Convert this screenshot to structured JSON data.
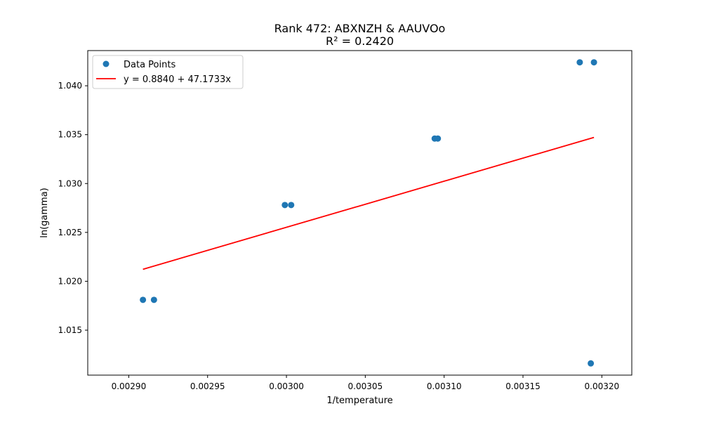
{
  "chart_data": {
    "type": "scatter",
    "title": "Rank 472: ABXNZH & AAUVOo",
    "subtitle": "R² = 0.2420",
    "xlabel": "1/temperature",
    "ylabel": "ln(gamma)",
    "xlim": [
      0.002874,
      0.003219
    ],
    "ylim": [
      1.0104,
      1.0436
    ],
    "xticks": [
      {
        "value": 0.0029,
        "label": "0.00290"
      },
      {
        "value": 0.00295,
        "label": "0.00295"
      },
      {
        "value": 0.003,
        "label": "0.00300"
      },
      {
        "value": 0.00305,
        "label": "0.00305"
      },
      {
        "value": 0.0031,
        "label": "0.00310"
      },
      {
        "value": 0.00315,
        "label": "0.00315"
      },
      {
        "value": 0.0032,
        "label": "0.00320"
      }
    ],
    "yticks": [
      {
        "value": 1.015,
        "label": "1.015"
      },
      {
        "value": 1.02,
        "label": "1.020"
      },
      {
        "value": 1.025,
        "label": "1.025"
      },
      {
        "value": 1.03,
        "label": "1.030"
      },
      {
        "value": 1.035,
        "label": "1.035"
      },
      {
        "value": 1.04,
        "label": "1.040"
      }
    ],
    "grid": false,
    "legend_position": "top-left",
    "series": [
      {
        "name": "Data Points",
        "kind": "scatter",
        "color": "#1f77b4",
        "points": [
          {
            "x": 0.002909,
            "y": 1.0181
          },
          {
            "x": 0.002916,
            "y": 1.0181
          },
          {
            "x": 0.002999,
            "y": 1.0278
          },
          {
            "x": 0.003003,
            "y": 1.0278
          },
          {
            "x": 0.003094,
            "y": 1.0346
          },
          {
            "x": 0.003096,
            "y": 1.0346
          },
          {
            "x": 0.003186,
            "y": 1.0424
          },
          {
            "x": 0.003195,
            "y": 1.0424
          },
          {
            "x": 0.003193,
            "y": 1.0116
          }
        ]
      },
      {
        "name": "y = 0.8840 + 47.1733x",
        "kind": "line",
        "color": "#ff0000",
        "intercept": 0.884,
        "slope": 47.1733,
        "x_range": [
          0.002909,
          0.003195
        ]
      }
    ]
  }
}
